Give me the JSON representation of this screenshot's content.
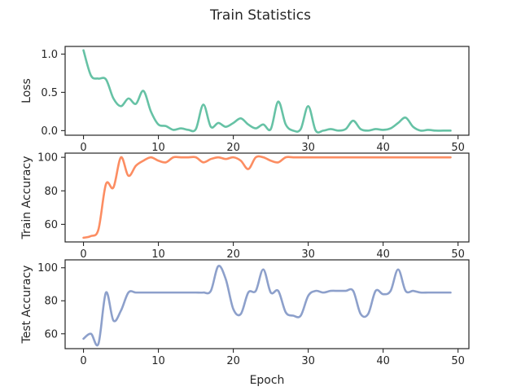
{
  "figure": {
    "title": "Train Statistics"
  },
  "chart_data": [
    {
      "type": "line",
      "title": "",
      "xlabel": "",
      "ylabel": "Loss",
      "xlim": [
        -2.45,
        51.45
      ],
      "ylim": [
        -0.06,
        1.1
      ],
      "xticks": [
        0,
        10,
        20,
        30,
        40,
        50
      ],
      "yticks": [
        0.0,
        0.5,
        1.0
      ],
      "ytick_labels": [
        "0.0",
        "0.5",
        "1.0"
      ],
      "grid": false,
      "series": [
        {
          "name": "",
          "color": "#66c2a5",
          "x": [
            0,
            1,
            2,
            3,
            4,
            5,
            6,
            7,
            8,
            9,
            10,
            11,
            12,
            13,
            14,
            15,
            16,
            17,
            18,
            19,
            20,
            21,
            22,
            23,
            24,
            25,
            26,
            27,
            28,
            29,
            30,
            31,
            32,
            33,
            34,
            35,
            36,
            37,
            38,
            39,
            40,
            41,
            42,
            43,
            44,
            45,
            46,
            47,
            48,
            49
          ],
          "y": [
            1.05,
            0.72,
            0.68,
            0.67,
            0.42,
            0.32,
            0.42,
            0.35,
            0.52,
            0.25,
            0.08,
            0.06,
            0.01,
            0.03,
            0.01,
            0.02,
            0.34,
            0.05,
            0.1,
            0.05,
            0.1,
            0.16,
            0.08,
            0.03,
            0.08,
            0.02,
            0.38,
            0.08,
            0.0,
            0.02,
            0.32,
            0.0,
            0.0,
            0.02,
            0.0,
            0.02,
            0.13,
            0.02,
            0.0,
            0.02,
            0.01,
            0.03,
            0.1,
            0.17,
            0.05,
            0.0,
            0.01,
            0.0,
            0.0,
            0.0
          ]
        }
      ]
    },
    {
      "type": "line",
      "title": "",
      "xlabel": "",
      "ylabel": "Train Accuracy",
      "xlim": [
        -2.45,
        51.45
      ],
      "ylim": [
        49.5,
        102.5
      ],
      "xticks": [
        0,
        10,
        20,
        30,
        40,
        50
      ],
      "yticks": [
        60,
        80,
        100
      ],
      "ytick_labels": [
        "60",
        "80",
        "100"
      ],
      "grid": false,
      "series": [
        {
          "name": "",
          "color": "#fc8d62",
          "x": [
            0,
            1,
            2,
            3,
            4,
            5,
            6,
            7,
            8,
            9,
            10,
            11,
            12,
            13,
            14,
            15,
            16,
            17,
            18,
            19,
            20,
            21,
            22,
            23,
            24,
            25,
            26,
            27,
            28,
            29,
            30,
            31,
            32,
            33,
            34,
            35,
            36,
            37,
            38,
            39,
            40,
            41,
            42,
            43,
            44,
            45,
            46,
            47,
            48,
            49
          ],
          "y": [
            52,
            53,
            57,
            84,
            82,
            100,
            89,
            95,
            98,
            100,
            98,
            97,
            100,
            100,
            100,
            100,
            97,
            99,
            100,
            99,
            100,
            98,
            93,
            100,
            100,
            98,
            97,
            100,
            100,
            100,
            100,
            100,
            100,
            100,
            100,
            100,
            100,
            100,
            100,
            100,
            100,
            100,
            100,
            100,
            100,
            100,
            100,
            100,
            100,
            100
          ]
        }
      ]
    },
    {
      "type": "line",
      "title": "",
      "xlabel": "Epoch",
      "ylabel": "Test Accuracy",
      "xlim": [
        -2.45,
        51.45
      ],
      "ylim": [
        51.0,
        104.8
      ],
      "xticks": [
        0,
        10,
        20,
        30,
        40,
        50
      ],
      "yticks": [
        60,
        80,
        100
      ],
      "ytick_labels": [
        "60",
        "80",
        "100"
      ],
      "grid": false,
      "series": [
        {
          "name": "",
          "color": "#8da0cb",
          "x": [
            0,
            1,
            2,
            3,
            4,
            5,
            6,
            7,
            8,
            9,
            10,
            11,
            12,
            13,
            14,
            15,
            16,
            17,
            18,
            19,
            20,
            21,
            22,
            23,
            24,
            25,
            26,
            27,
            28,
            29,
            30,
            31,
            32,
            33,
            34,
            35,
            36,
            37,
            38,
            39,
            40,
            41,
            42,
            43,
            44,
            45,
            46,
            47,
            48,
            49
          ],
          "y": [
            57,
            60,
            54,
            85,
            68,
            74,
            85,
            85,
            85,
            85,
            85,
            85,
            85,
            85,
            85,
            85,
            85,
            86,
            101,
            93,
            75,
            72,
            85,
            86,
            99,
            85,
            86,
            73,
            71,
            71,
            83,
            86,
            85,
            86,
            86,
            86,
            86,
            72,
            72,
            86,
            84,
            86,
            99,
            86,
            86,
            85,
            85,
            85,
            85,
            85
          ]
        }
      ]
    }
  ]
}
